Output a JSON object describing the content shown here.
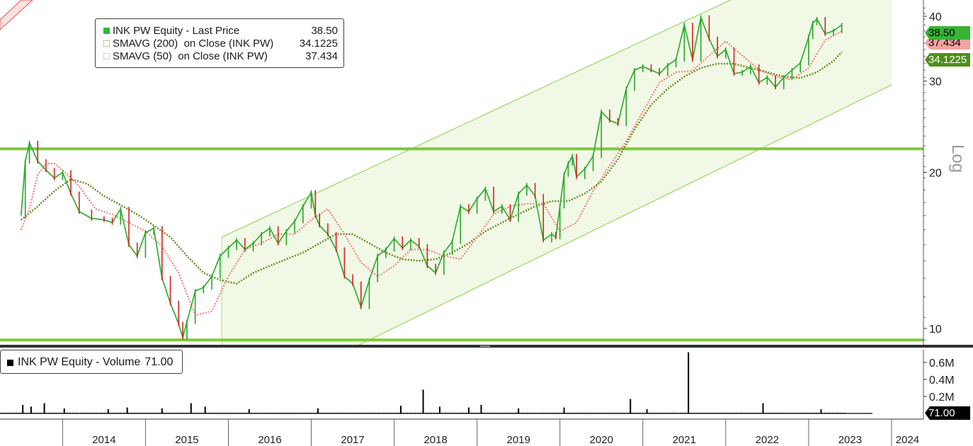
{
  "chart_data": [
    {
      "type": "line",
      "title": "INK PW Equity",
      "scale": "log",
      "ylim": [
        9.3,
        43
      ],
      "yticks": [
        10,
        20,
        30,
        40
      ],
      "yaxis_label": "Log",
      "xaxis": {
        "years": [
          "2014",
          "2015",
          "2016",
          "2017",
          "2018",
          "2019",
          "2020",
          "2021",
          "2022",
          "2023",
          "2024"
        ]
      },
      "grid": false,
      "legend_position": "top-left",
      "legend": [
        {
          "name": "INK PW Equity - Last Price",
          "value": "38.50",
          "color": "#36b336"
        },
        {
          "name": "SMAVG (200)  on Close (INK PW)",
          "value": "34.1225",
          "color": "#6b8e23"
        },
        {
          "name": "SMAVG (50)  on Close (INK PW)",
          "value": "37.434",
          "color": "#f08080"
        }
      ],
      "last_value_tags": [
        {
          "text": "38.50",
          "value": 38.5,
          "bg": "#36b336",
          "fg": "#000000"
        },
        {
          "text": "37.434",
          "value": 37.434,
          "bg": "#f3a3a3",
          "fg": "#000000"
        },
        {
          "text": "34.1225",
          "value": 34.1225,
          "bg": "#4e8f1a",
          "fg": "#ffffff"
        }
      ],
      "horizontal_lines": [
        {
          "value": 22.2,
          "color": "#7ec93b"
        },
        {
          "value": 9.5,
          "color": "#7ec93b"
        }
      ],
      "channel": {
        "start": {
          "x": 2015.92,
          "lower": 6.9,
          "upper": 15.0
        },
        "end": {
          "x": 2024.0,
          "lower": 29.5,
          "upper": 60.0
        },
        "fill": "#f1f9e6",
        "stroke": "#99d65c"
      },
      "series": [
        {
          "name": "INK PW Equity - Last Price",
          "color": "#36b336",
          "x": [
            2013.5,
            2013.55,
            2013.6,
            2013.7,
            2013.8,
            2013.9,
            2014.0,
            2014.1,
            2014.2,
            2014.35,
            2014.5,
            2014.6,
            2014.7,
            2014.8,
            2014.9,
            2015.0,
            2015.1,
            2015.2,
            2015.3,
            2015.4,
            2015.45,
            2015.5,
            2015.6,
            2015.7,
            2015.8,
            2015.9,
            2016.0,
            2016.1,
            2016.2,
            2016.3,
            2016.4,
            2016.5,
            2016.6,
            2016.7,
            2016.8,
            2016.9,
            2017.0,
            2017.05,
            2017.1,
            2017.2,
            2017.3,
            2017.4,
            2017.5,
            2017.6,
            2017.7,
            2017.8,
            2017.9,
            2018.0,
            2018.1,
            2018.2,
            2018.3,
            2018.4,
            2018.5,
            2018.6,
            2018.7,
            2018.8,
            2018.9,
            2019.0,
            2019.1,
            2019.2,
            2019.3,
            2019.4,
            2019.5,
            2019.6,
            2019.7,
            2019.8,
            2019.9,
            2019.95,
            2020.0,
            2020.05,
            2020.1,
            2020.15,
            2020.2,
            2020.3,
            2020.4,
            2020.5,
            2020.6,
            2020.7,
            2020.8,
            2020.9,
            2021.0,
            2021.1,
            2021.2,
            2021.3,
            2021.4,
            2021.5,
            2021.6,
            2021.7,
            2021.8,
            2021.9,
            2022.0,
            2022.1,
            2022.2,
            2022.3,
            2022.4,
            2022.5,
            2022.6,
            2022.7,
            2022.8,
            2022.9,
            2023.0,
            2023.05,
            2023.1,
            2023.2,
            2023.3,
            2023.4
          ],
          "values": [
            16.5,
            21.0,
            22.8,
            21.0,
            20.2,
            19.5,
            20.0,
            18.2,
            16.8,
            16.3,
            16.2,
            16.0,
            17.0,
            14.5,
            13.8,
            15.3,
            15.6,
            12.5,
            11.2,
            10.2,
            9.6,
            10.3,
            11.8,
            12.0,
            12.6,
            13.8,
            14.3,
            14.8,
            14.2,
            14.6,
            15.2,
            15.6,
            14.6,
            15.4,
            16.1,
            17.2,
            18.3,
            16.5,
            15.8,
            15.2,
            14.2,
            12.6,
            12.2,
            11.0,
            12.4,
            13.8,
            14.2,
            14.9,
            14.3,
            14.8,
            14.4,
            13.2,
            12.8,
            14.0,
            14.7,
            17.2,
            16.8,
            17.8,
            18.6,
            16.8,
            17.2,
            16.2,
            18.2,
            18.9,
            18.0,
            14.8,
            15.2,
            15.0,
            17.2,
            19.8,
            20.8,
            21.5,
            19.6,
            20.3,
            21.5,
            26.2,
            25.2,
            24.8,
            29.0,
            31.5,
            32.0,
            31.5,
            31.0,
            32.2,
            33.0,
            38.5,
            33.0,
            39.8,
            36.2,
            33.5,
            34.5,
            31.0,
            31.2,
            32.0,
            29.8,
            30.5,
            29.2,
            30.5,
            31.5,
            32.5,
            36.5,
            38.8,
            39.5,
            37.0,
            37.5,
            38.5
          ]
        },
        {
          "name": "SMAVG (200)  on Close (INK PW)",
          "color": "#6b8e23",
          "x": [
            2013.5,
            2013.7,
            2013.9,
            2014.1,
            2014.3,
            2014.5,
            2014.7,
            2014.9,
            2015.1,
            2015.3,
            2015.5,
            2015.7,
            2015.9,
            2016.1,
            2016.3,
            2016.5,
            2016.7,
            2016.9,
            2017.1,
            2017.3,
            2017.5,
            2017.7,
            2017.9,
            2018.1,
            2018.3,
            2018.5,
            2018.7,
            2018.9,
            2019.1,
            2019.3,
            2019.5,
            2019.7,
            2019.9,
            2020.1,
            2020.3,
            2020.5,
            2020.7,
            2020.9,
            2021.1,
            2021.3,
            2021.5,
            2021.7,
            2021.9,
            2022.1,
            2022.3,
            2022.5,
            2022.7,
            2022.9,
            2023.1,
            2023.3,
            2023.4
          ],
          "values": [
            16.2,
            17.2,
            18.4,
            19.4,
            19.0,
            18.0,
            17.3,
            16.6,
            15.8,
            15.0,
            13.8,
            12.8,
            12.4,
            12.2,
            12.8,
            13.2,
            13.6,
            14.0,
            14.6,
            15.2,
            15.2,
            14.6,
            14.0,
            13.6,
            13.5,
            13.6,
            14.0,
            14.6,
            15.4,
            16.0,
            16.6,
            17.2,
            17.6,
            17.6,
            18.2,
            19.2,
            21.2,
            24.2,
            27.0,
            29.0,
            30.6,
            31.8,
            32.4,
            32.4,
            31.8,
            31.2,
            30.6,
            30.4,
            31.2,
            32.8,
            34.1225
          ]
        },
        {
          "name": "SMAVG (50)  on Close (INK PW)",
          "color": "#f08080",
          "x": [
            2013.5,
            2013.6,
            2013.7,
            2013.8,
            2013.9,
            2014.0,
            2014.2,
            2014.4,
            2014.6,
            2014.8,
            2015.0,
            2015.2,
            2015.4,
            2015.6,
            2015.8,
            2016.0,
            2016.2,
            2016.4,
            2016.6,
            2016.8,
            2017.0,
            2017.2,
            2017.4,
            2017.6,
            2017.8,
            2018.0,
            2018.2,
            2018.4,
            2018.6,
            2018.8,
            2019.0,
            2019.2,
            2019.4,
            2019.6,
            2019.8,
            2020.0,
            2020.2,
            2020.4,
            2020.6,
            2020.8,
            2021.0,
            2021.2,
            2021.4,
            2021.6,
            2021.8,
            2022.0,
            2022.2,
            2022.4,
            2022.6,
            2022.8,
            2023.0,
            2023.2,
            2023.4
          ],
          "values": [
            15.5,
            17.0,
            19.8,
            20.8,
            20.8,
            20.2,
            18.8,
            17.0,
            16.6,
            16.0,
            15.4,
            14.4,
            12.8,
            10.6,
            10.8,
            12.6,
            14.2,
            14.6,
            15.2,
            15.2,
            16.2,
            17.0,
            15.2,
            13.4,
            12.6,
            13.2,
            14.2,
            14.2,
            13.8,
            13.6,
            15.0,
            16.6,
            17.2,
            17.4,
            17.4,
            15.4,
            16.0,
            18.4,
            20.6,
            23.0,
            26.2,
            29.8,
            31.2,
            31.4,
            33.6,
            35.8,
            33.6,
            31.6,
            30.6,
            30.2,
            31.8,
            36.0,
            37.434
          ]
        }
      ]
    },
    {
      "type": "bar",
      "title": "INK PW Equity - Volume",
      "ylim": [
        0,
        0.75
      ],
      "yticks": [
        "0.2M",
        "0.4M",
        "0.6M"
      ],
      "ytick_values": [
        0.2,
        0.4,
        0.6
      ],
      "unit": "M",
      "legend": {
        "name": "INK PW Equity - Volume",
        "value": "71.00",
        "color": "#000000"
      },
      "last_value_tag": {
        "text": "71.00",
        "bg": "#000000",
        "fg": "#ffffff"
      },
      "x": [
        2013.52,
        2013.62,
        2013.78,
        2014.02,
        2014.55,
        2014.78,
        2015.2,
        2015.55,
        2015.72,
        2016.25,
        2017.08,
        2018.08,
        2018.35,
        2018.55,
        2018.9,
        2019.05,
        2019.5,
        2020.05,
        2020.85,
        2021.05,
        2021.55,
        2022.45,
        2023.15
      ],
      "values": [
        0.1,
        0.08,
        0.12,
        0.06,
        0.05,
        0.07,
        0.06,
        0.12,
        0.08,
        0.05,
        0.06,
        0.09,
        0.28,
        0.08,
        0.07,
        0.1,
        0.06,
        0.07,
        0.17,
        0.05,
        0.72,
        0.12,
        0.05
      ]
    }
  ]
}
